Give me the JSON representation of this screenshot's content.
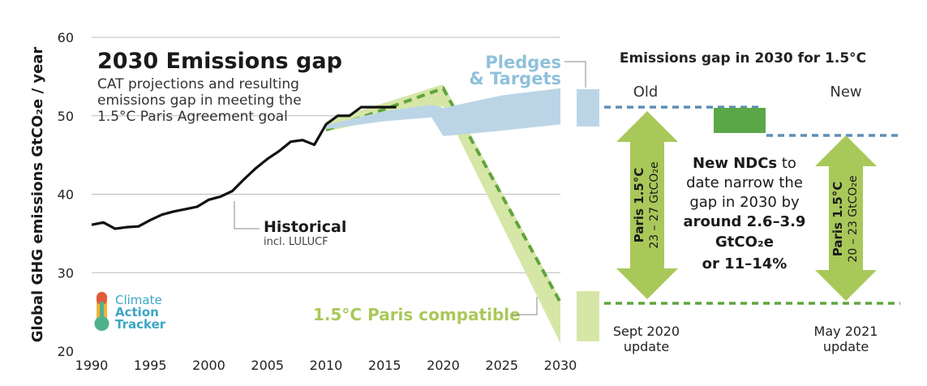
{
  "title": "2030 Emissions gap",
  "subtitle_lines": [
    "CAT projections and resulting",
    "emissions gap in meeting the",
    "1.5°C Paris Agreement goal"
  ],
  "y_axis_label": "Global GHG emissions GtCO₂e / year",
  "labels": {
    "pledges_line1": "Pledges",
    "pledges_line2": "& Targets",
    "historical": "Historical",
    "historical_sub": "incl. LULUCF",
    "paris_compatible": "1.5°C Paris compatible"
  },
  "logo": {
    "line1": "Climate",
    "line2": "Action",
    "line3": "Tracker"
  },
  "chart_data": {
    "type": "line",
    "xlim": [
      1990,
      2030
    ],
    "ylim": [
      20,
      60
    ],
    "xticks": [
      1990,
      1995,
      2000,
      2005,
      2010,
      2015,
      2020,
      2025,
      2030
    ],
    "yticks": [
      20,
      30,
      40,
      50,
      60
    ],
    "grid": true,
    "series": [
      {
        "name": "Historical",
        "x": [
          1990,
          1991,
          1992,
          1993,
          1994,
          1995,
          1996,
          1997,
          1998,
          1999,
          2000,
          2001,
          2002,
          2003,
          2004,
          2005,
          2006,
          2007,
          2008,
          2009,
          2010,
          2011,
          2012,
          2013,
          2014,
          2015,
          2016
        ],
        "y": [
          36.1,
          36.4,
          35.6,
          35.8,
          35.9,
          36.7,
          37.4,
          37.8,
          38.1,
          38.4,
          39.3,
          39.7,
          40.4,
          41.9,
          43.3,
          44.5,
          45.5,
          46.7,
          46.9,
          46.3,
          48.9,
          50.0,
          50.0,
          51.1,
          51.1,
          51.1,
          51.1
        ]
      },
      {
        "name": "Pledges & Targets",
        "type": "area",
        "x": [
          2010,
          2015,
          2019,
          2020,
          2025,
          2030
        ],
        "y_low": [
          48.3,
          49.3,
          49.8,
          47.4,
          48.1,
          48.9
        ],
        "y_high": [
          48.8,
          50.6,
          51.4,
          51.0,
          52.6,
          53.5
        ]
      },
      {
        "name": "1.5°C Paris compatible",
        "type": "area",
        "x": [
          2010,
          2020,
          2030
        ],
        "y_low": [
          48.0,
          51.2,
          21.0
        ],
        "y_high": [
          49.3,
          54.0,
          26.6
        ],
        "central_x": [
          2010,
          2020,
          2030
        ],
        "central_y": [
          48.2,
          53.5,
          26.2
        ]
      }
    ]
  },
  "gap_panel": {
    "title": "Emissions gap in 2030 for 1.5°C",
    "old_label": "Old",
    "new_label": "New",
    "old_arrow_line1": "Paris 1.5°C",
    "old_arrow_line2": "23 – 27 GtCO₂e",
    "new_arrow_line1": "Paris 1.5°C",
    "new_arrow_line2": "20 – 23 GtCO₂e",
    "middle_lines": [
      {
        "bold": "New NDCs",
        "normal": " to"
      },
      {
        "bold": "",
        "normal": "date narrow the"
      },
      {
        "bold": "",
        "normal": "gap in 2030 by"
      },
      {
        "bold": "around 2.6–3.9",
        "normal": ""
      },
      {
        "bold": "GtCO₂e",
        "normal": ""
      },
      {
        "bold": "or 11–14%",
        "normal": ""
      }
    ],
    "old_update_line1": "Sept 2020",
    "old_update_line2": "update",
    "new_update_line1": "May 2021",
    "new_update_line2": "update",
    "old_level": 51.1,
    "new_level": 47.5,
    "paris_level": 26.1
  },
  "colors": {
    "historical": "#111111",
    "pledges": "#bcd5e6",
    "pledges_line": "#5d8fb5",
    "paris_band": "#d6e6a7",
    "paris_dash": "#5fa53b",
    "arrow": "#a9c85a",
    "gap_bar": "#5aa748",
    "grid": "#bbbbbb"
  }
}
